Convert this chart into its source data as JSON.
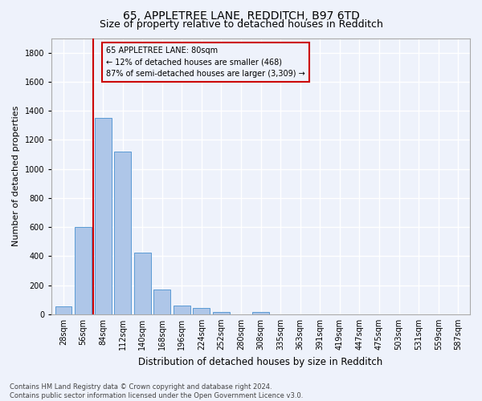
{
  "title1": "65, APPLETREE LANE, REDDITCH, B97 6TD",
  "title2": "Size of property relative to detached houses in Redditch",
  "xlabel": "Distribution of detached houses by size in Redditch",
  "ylabel": "Number of detached properties",
  "footnote": "Contains HM Land Registry data © Crown copyright and database right 2024.\nContains public sector information licensed under the Open Government Licence v3.0.",
  "bin_labels": [
    "28sqm",
    "56sqm",
    "84sqm",
    "112sqm",
    "140sqm",
    "168sqm",
    "196sqm",
    "224sqm",
    "252sqm",
    "280sqm",
    "308sqm",
    "335sqm",
    "363sqm",
    "391sqm",
    "419sqm",
    "447sqm",
    "475sqm",
    "503sqm",
    "531sqm",
    "559sqm",
    "587sqm"
  ],
  "bar_values": [
    55,
    600,
    1350,
    1120,
    425,
    170,
    60,
    42,
    18,
    0,
    18,
    0,
    0,
    0,
    0,
    0,
    0,
    0,
    0,
    0,
    0
  ],
  "bar_color": "#aec6e8",
  "bar_edge_color": "#5b9bd5",
  "highlight_color": "#cc0000",
  "annotation_text": "65 APPLETREE LANE: 80sqm\n← 12% of detached houses are smaller (468)\n87% of semi-detached houses are larger (3,309) →",
  "annotation_box_color": "#cc0000",
  "ylim": [
    0,
    1900
  ],
  "yticks": [
    0,
    200,
    400,
    600,
    800,
    1000,
    1200,
    1400,
    1600,
    1800
  ],
  "background_color": "#eef2fb",
  "grid_color": "#ffffff",
  "title1_fontsize": 10,
  "title2_fontsize": 9,
  "xlabel_fontsize": 8.5,
  "ylabel_fontsize": 8,
  "tick_fontsize": 7,
  "annotation_fontsize": 7,
  "footnote_fontsize": 6
}
